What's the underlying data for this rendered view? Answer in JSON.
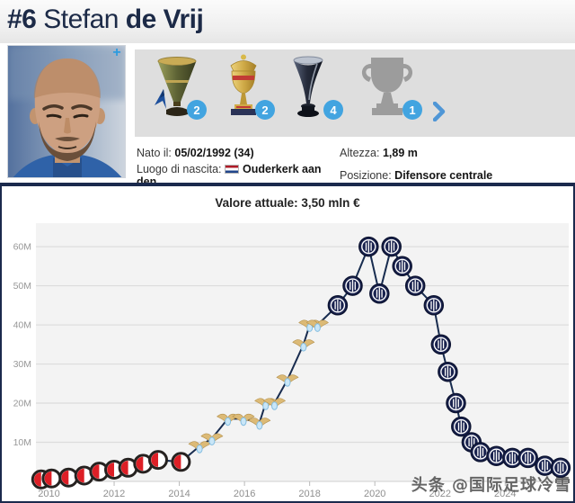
{
  "header": {
    "shirt_number": "#6",
    "first_name": "Stefan",
    "last_name": "de Vrij"
  },
  "photo": {
    "add_label": "+"
  },
  "trophies": {
    "items": [
      {
        "icon": "serie-a-trophy-icon",
        "count": "2"
      },
      {
        "icon": "coppa-italia-trophy-icon",
        "count": "2"
      },
      {
        "icon": "supercoppa-italiana-trophy-icon",
        "count": "4"
      },
      {
        "icon": "trophy-generic-icon",
        "count": "1"
      }
    ]
  },
  "info": {
    "born_label": "Nato il:",
    "born_value": "05/02/1992 (34)",
    "height_label": "Altezza:",
    "height_value": "1,89 m",
    "birthplace_label": "Luogo di nascita:",
    "birthplace_flag": "netherlands-flag",
    "birthplace_value": "Ouderkerk aan den ...",
    "position_label": "Posizione:",
    "position_value": "Difensore centrale"
  },
  "chart_data": {
    "type": "line",
    "title": "Valore attuale: 3,50 mln €",
    "xlabel": "",
    "ylabel": "",
    "unit": "mln €",
    "current_value": "3,50 mln €",
    "xlim": [
      2009.6,
      2025.95
    ],
    "ylim": [
      0,
      66
    ],
    "grid": true,
    "legend": "none",
    "yticks": [
      {
        "v": 10,
        "label": "10M"
      },
      {
        "v": 20,
        "label": "20M"
      },
      {
        "v": 30,
        "label": "30M"
      },
      {
        "v": 40,
        "label": "40M"
      },
      {
        "v": 50,
        "label": "50M"
      },
      {
        "v": 60,
        "label": "60M"
      }
    ],
    "xticks": [
      "2010",
      "2012",
      "2014",
      "2016",
      "2018",
      "2020",
      "2022",
      "2024"
    ],
    "series": [
      {
        "name": "market-value",
        "points": [
          [
            2009.76,
            0.5,
            "feyenoord"
          ],
          [
            2010.08,
            0.75,
            "feyenoord"
          ],
          [
            2010.6,
            1.0,
            "feyenoord"
          ],
          [
            2011.08,
            1.5,
            "feyenoord"
          ],
          [
            2011.54,
            2.5,
            "feyenoord"
          ],
          [
            2012.0,
            3.0,
            "feyenoord"
          ],
          [
            2012.43,
            3.5,
            "feyenoord"
          ],
          [
            2012.89,
            4.5,
            "feyenoord"
          ],
          [
            2013.35,
            5.5,
            "feyenoord"
          ],
          [
            2014.05,
            5.0,
            "feyenoord"
          ],
          [
            2014.62,
            9.0,
            "lazio"
          ],
          [
            2015.0,
            11.0,
            "lazio"
          ],
          [
            2015.49,
            16.0,
            "lazio"
          ],
          [
            2015.97,
            16.0,
            "lazio"
          ],
          [
            2016.46,
            15.0,
            "lazio"
          ],
          [
            2016.65,
            20.0,
            "lazio"
          ],
          [
            2016.92,
            20.0,
            "lazio"
          ],
          [
            2017.32,
            26.0,
            "lazio"
          ],
          [
            2017.81,
            35.0,
            "lazio"
          ],
          [
            2018.0,
            40.0,
            "lazio"
          ],
          [
            2018.24,
            40.0,
            "lazio"
          ],
          [
            2018.86,
            45.0,
            "inter"
          ],
          [
            2019.32,
            50.0,
            "inter"
          ],
          [
            2019.81,
            60.0,
            "inter"
          ],
          [
            2020.14,
            48.0,
            "inter"
          ],
          [
            2020.51,
            60.0,
            "inter"
          ],
          [
            2020.84,
            55.0,
            "inter"
          ],
          [
            2021.24,
            50.0,
            "inter"
          ],
          [
            2021.81,
            45.0,
            "inter"
          ],
          [
            2022.03,
            35.0,
            "inter"
          ],
          [
            2022.24,
            28.0,
            "inter"
          ],
          [
            2022.49,
            20.0,
            "inter"
          ],
          [
            2022.65,
            14.0,
            "inter"
          ],
          [
            2022.97,
            10.0,
            "inter"
          ],
          [
            2023.24,
            7.5,
            "inter"
          ],
          [
            2023.73,
            6.5,
            "inter"
          ],
          [
            2024.22,
            6.0,
            "inter"
          ],
          [
            2024.7,
            6.0,
            "inter"
          ],
          [
            2025.22,
            4.0,
            "inter"
          ],
          [
            2025.7,
            3.5,
            "inter"
          ]
        ]
      }
    ]
  },
  "watermark": "头条 @国际足球冷雪"
}
